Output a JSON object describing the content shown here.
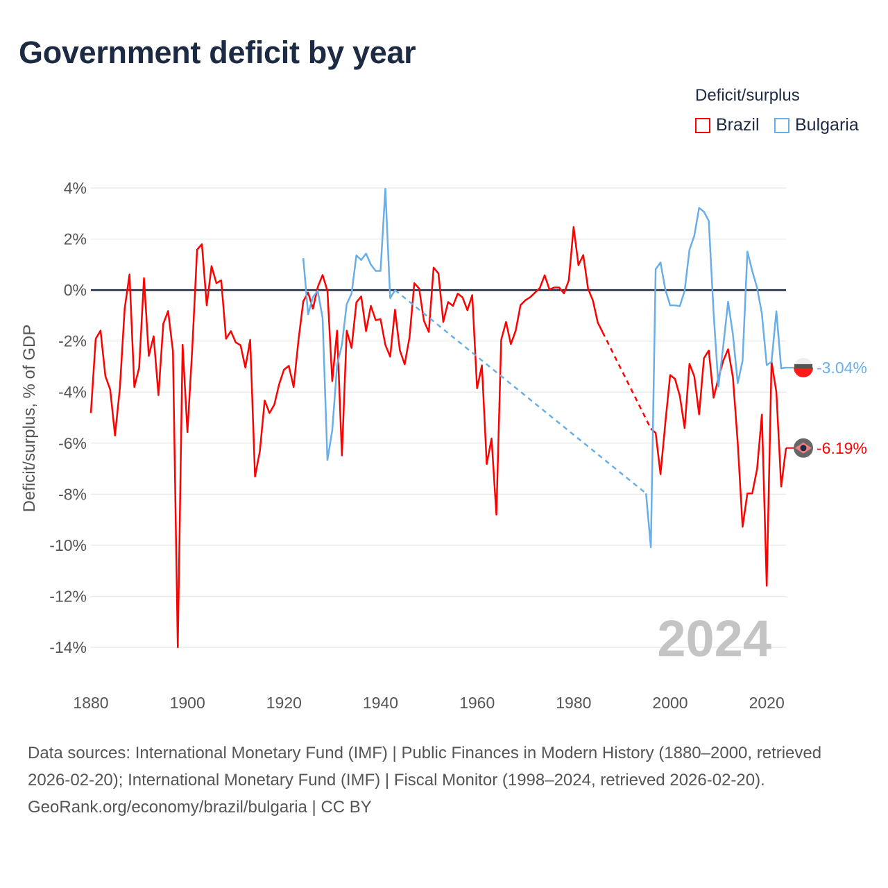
{
  "title": "Government deficit by year",
  "legend": {
    "title": "Deficit/surplus",
    "items": [
      {
        "label": "Brazil",
        "color": "#ff0000"
      },
      {
        "label": "Bulgaria",
        "color": "#6aaee8"
      }
    ]
  },
  "year_watermark": "2024",
  "footer": {
    "sources": "Data sources: International Monetary Fund (IMF) | Public Finances in Modern History (1880–2000, retrieved 2026-02-20); International Monetary Fund (IMF) | Fiscal Monitor (1998–2024, retrieved 2026-02-20).",
    "credit": "GeoRank.org/economy/brazil/bulgaria | CC BY"
  },
  "chart_data": {
    "type": "line",
    "title": "Government deficit by year",
    "xlabel": "",
    "ylabel": "Deficit/surplus, % of GDP",
    "xlim": [
      1880,
      2024
    ],
    "ylim": [
      -14,
      4
    ],
    "xticks": [
      1880,
      1900,
      1920,
      1940,
      1960,
      1980,
      2000,
      2020
    ],
    "xtick_labels": [
      "1880",
      "1900",
      "1920",
      "1940",
      "1960",
      "1980",
      "2000",
      "2020"
    ],
    "yticks": [
      4,
      2,
      0,
      -2,
      -4,
      -6,
      -8,
      -10,
      -12,
      -14
    ],
    "ytick_labels": [
      "4%",
      "2%",
      "0%",
      "-2%",
      "-4%",
      "-6%",
      "-8%",
      "-10%",
      "-12%",
      "-14%"
    ],
    "grid": true,
    "legend_position": "top-right",
    "end_labels": [
      {
        "series": "Bulgaria",
        "text": "-3.04%",
        "value": -3.04
      },
      {
        "series": "Brazil",
        "text": "-6.19%",
        "value": -6.19
      }
    ],
    "series": [
      {
        "name": "Brazil",
        "color": "#ff0000",
        "points": [
          [
            1880,
            -4.82
          ],
          [
            1881,
            -1.91
          ],
          [
            1882,
            -1.59
          ],
          [
            1883,
            -3.37
          ],
          [
            1884,
            -3.9
          ],
          [
            1885,
            -5.7
          ],
          [
            1886,
            -3.85
          ],
          [
            1887,
            -0.73
          ],
          [
            1888,
            0.61
          ],
          [
            1889,
            -3.8
          ],
          [
            1890,
            -3.04
          ],
          [
            1891,
            0.47
          ],
          [
            1892,
            -2.58
          ],
          [
            1893,
            -1.81
          ],
          [
            1894,
            -4.12
          ],
          [
            1895,
            -1.32
          ],
          [
            1896,
            -0.82
          ],
          [
            1897,
            -2.4
          ],
          [
            1898,
            -14.0
          ],
          [
            1899,
            -2.15
          ],
          [
            1900,
            -5.57
          ],
          [
            1901,
            -2.3
          ],
          [
            1902,
            1.58
          ],
          [
            1903,
            1.8
          ],
          [
            1904,
            -0.6
          ],
          [
            1905,
            0.94
          ],
          [
            1906,
            0.27
          ],
          [
            1907,
            0.38
          ],
          [
            1908,
            -1.91
          ],
          [
            1909,
            -1.61
          ],
          [
            1910,
            -2.05
          ],
          [
            1911,
            -2.16
          ],
          [
            1912,
            -3.04
          ],
          [
            1913,
            -1.95
          ],
          [
            1914,
            -7.31
          ],
          [
            1915,
            -6.32
          ],
          [
            1916,
            -4.33
          ],
          [
            1917,
            -4.82
          ],
          [
            1918,
            -4.49
          ],
          [
            1919,
            -3.69
          ],
          [
            1920,
            -3.12
          ],
          [
            1921,
            -2.97
          ],
          [
            1922,
            -3.8
          ],
          [
            1923,
            -1.97
          ],
          [
            1924,
            -0.44
          ],
          [
            1925,
            -0.1
          ],
          [
            1926,
            -0.73
          ],
          [
            1927,
            0.12
          ],
          [
            1928,
            0.59
          ],
          [
            1929,
            -0.03
          ],
          [
            1930,
            -3.57
          ],
          [
            1931,
            -1.59
          ],
          [
            1932,
            -6.48
          ],
          [
            1933,
            -1.59
          ],
          [
            1934,
            -2.27
          ],
          [
            1935,
            -0.48
          ],
          [
            1936,
            -0.25
          ],
          [
            1937,
            -1.61
          ],
          [
            1938,
            -0.62
          ],
          [
            1939,
            -1.18
          ],
          [
            1940,
            -1.14
          ],
          [
            1941,
            -2.15
          ],
          [
            1942,
            -2.61
          ],
          [
            1943,
            -0.77
          ],
          [
            1944,
            -2.36
          ],
          [
            1945,
            -2.91
          ],
          [
            1946,
            -1.86
          ],
          [
            1947,
            0.27
          ],
          [
            1948,
            0.06
          ],
          [
            1949,
            -1.21
          ],
          [
            1950,
            -1.64
          ],
          [
            1951,
            0.88
          ],
          [
            1952,
            0.65
          ],
          [
            1953,
            -1.25
          ],
          [
            1954,
            -0.47
          ],
          [
            1955,
            -0.62
          ],
          [
            1956,
            -0.14
          ],
          [
            1957,
            -0.29
          ],
          [
            1958,
            -0.79
          ],
          [
            1959,
            -0.2
          ],
          [
            1960,
            -3.85
          ],
          [
            1961,
            -2.95
          ],
          [
            1962,
            -6.82
          ],
          [
            1963,
            -5.82
          ],
          [
            1964,
            -8.8
          ],
          [
            1965,
            -1.95
          ],
          [
            1966,
            -1.25
          ],
          [
            1967,
            -2.12
          ],
          [
            1968,
            -1.59
          ],
          [
            1969,
            -0.59
          ],
          [
            1970,
            -0.4
          ],
          [
            1971,
            -0.28
          ],
          [
            1972,
            -0.1
          ],
          [
            1973,
            0.08
          ],
          [
            1974,
            0.58
          ],
          [
            1975,
            0.02
          ],
          [
            1976,
            0.1
          ],
          [
            1977,
            0.1
          ],
          [
            1978,
            -0.13
          ],
          [
            1979,
            0.38
          ],
          [
            1980,
            2.47
          ],
          [
            1981,
            0.98
          ],
          [
            1982,
            1.37
          ],
          [
            1983,
            0.05
          ],
          [
            1984,
            -0.41
          ],
          [
            1985,
            -1.27
          ],
          [
            1986,
            -1.65
          ],
          [
            1996,
            -5.43
          ],
          [
            1997,
            -5.6
          ],
          [
            1998,
            -7.22
          ],
          [
            1999,
            -5.2
          ],
          [
            2000,
            -3.33
          ],
          [
            2001,
            -3.48
          ],
          [
            2002,
            -4.15
          ],
          [
            2003,
            -5.41
          ],
          [
            2004,
            -2.89
          ],
          [
            2005,
            -3.38
          ],
          [
            2006,
            -4.87
          ],
          [
            2007,
            -2.67
          ],
          [
            2008,
            -2.37
          ],
          [
            2009,
            -4.22
          ],
          [
            2010,
            -3.45
          ],
          [
            2011,
            -2.77
          ],
          [
            2012,
            -2.32
          ],
          [
            2013,
            -3.42
          ],
          [
            2014,
            -6.0
          ],
          [
            2015,
            -9.28
          ],
          [
            2016,
            -7.97
          ],
          [
            2017,
            -7.97
          ],
          [
            2018,
            -7.02
          ],
          [
            2019,
            -4.88
          ],
          [
            2020,
            -11.59
          ],
          [
            2021,
            -2.81
          ],
          [
            2022,
            -4.0
          ],
          [
            2023,
            -7.7
          ],
          [
            2024,
            -6.19
          ]
        ]
      },
      {
        "name": "Bulgaria",
        "color": "#6aaee8",
        "points": [
          [
            1924,
            1.25
          ],
          [
            1925,
            -0.95
          ],
          [
            1926,
            -0.27
          ],
          [
            1927,
            -0.03
          ],
          [
            1928,
            -1.09
          ],
          [
            1929,
            -6.66
          ],
          [
            1930,
            -5.5
          ],
          [
            1931,
            -2.95
          ],
          [
            1932,
            -2.15
          ],
          [
            1933,
            -0.55
          ],
          [
            1934,
            -0.14
          ],
          [
            1935,
            1.36
          ],
          [
            1936,
            1.18
          ],
          [
            1937,
            1.43
          ],
          [
            1938,
            1.0
          ],
          [
            1939,
            0.75
          ],
          [
            1940,
            0.75
          ],
          [
            1941,
            3.97
          ],
          [
            1942,
            -0.32
          ],
          [
            1943,
            0.0
          ],
          [
            1995,
            -7.97
          ],
          [
            1996,
            -10.08
          ],
          [
            1997,
            0.82
          ],
          [
            1998,
            1.08
          ],
          [
            1999,
            0.02
          ],
          [
            2000,
            -0.6
          ],
          [
            2001,
            -0.6
          ],
          [
            2002,
            -0.63
          ],
          [
            2003,
            -0.03
          ],
          [
            2004,
            1.58
          ],
          [
            2005,
            2.13
          ],
          [
            2006,
            3.22
          ],
          [
            2007,
            3.07
          ],
          [
            2008,
            2.71
          ],
          [
            2009,
            -0.9
          ],
          [
            2010,
            -3.78
          ],
          [
            2011,
            -2.19
          ],
          [
            2012,
            -0.46
          ],
          [
            2013,
            -1.74
          ],
          [
            2014,
            -3.65
          ],
          [
            2015,
            -2.77
          ],
          [
            2016,
            1.51
          ],
          [
            2017,
            0.75
          ],
          [
            2018,
            0.1
          ],
          [
            2019,
            -0.93
          ],
          [
            2020,
            -2.94
          ],
          [
            2021,
            -2.81
          ],
          [
            2022,
            -0.83
          ],
          [
            2023,
            -3.07
          ],
          [
            2024,
            -3.04
          ]
        ]
      }
    ]
  }
}
